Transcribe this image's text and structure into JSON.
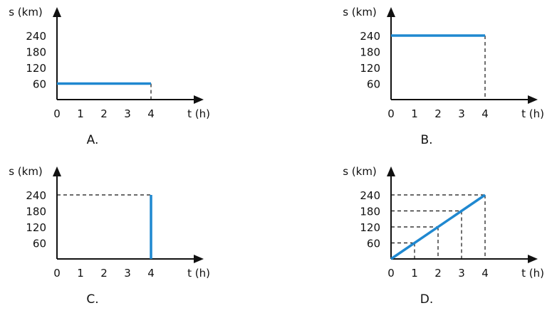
{
  "chart_data": [
    {
      "type": "line",
      "label": "A.",
      "ylabel": "s (km)",
      "xlabel": "t (h)",
      "x_ticks": [
        "0",
        "1",
        "2",
        "3",
        "4"
      ],
      "y_ticks": [
        "60",
        "120",
        "180",
        "240"
      ],
      "xlim": [
        0,
        4
      ],
      "ylim": [
        0,
        240
      ],
      "series": [
        {
          "points": [
            [
              0,
              60
            ],
            [
              4,
              60
            ]
          ]
        }
      ],
      "guides": [
        {
          "from": [
            4,
            60
          ],
          "to": [
            4,
            0
          ]
        }
      ]
    },
    {
      "type": "line",
      "label": "B.",
      "ylabel": "s (km)",
      "xlabel": "t (h)",
      "x_ticks": [
        "0",
        "1",
        "2",
        "3",
        "4"
      ],
      "y_ticks": [
        "60",
        "120",
        "180",
        "240"
      ],
      "xlim": [
        0,
        4
      ],
      "ylim": [
        0,
        240
      ],
      "series": [
        {
          "points": [
            [
              0,
              240
            ],
            [
              4,
              240
            ]
          ]
        }
      ],
      "guides": [
        {
          "from": [
            4,
            240
          ],
          "to": [
            4,
            0
          ]
        }
      ]
    },
    {
      "type": "line",
      "label": "C.",
      "ylabel": "s (km)",
      "xlabel": "t (h)",
      "x_ticks": [
        "0",
        "1",
        "2",
        "3",
        "4"
      ],
      "y_ticks": [
        "60",
        "120",
        "180",
        "240"
      ],
      "xlim": [
        0,
        4
      ],
      "ylim": [
        0,
        240
      ],
      "series": [
        {
          "points": [
            [
              4,
              0
            ],
            [
              4,
              240
            ]
          ]
        }
      ],
      "guides": [
        {
          "from": [
            0,
            240
          ],
          "to": [
            4,
            240
          ]
        }
      ]
    },
    {
      "type": "line",
      "label": "D.",
      "ylabel": "s (km)",
      "xlabel": "t (h)",
      "x_ticks": [
        "0",
        "1",
        "2",
        "3",
        "4"
      ],
      "y_ticks": [
        "60",
        "120",
        "180",
        "240"
      ],
      "xlim": [
        0,
        4
      ],
      "ylim": [
        0,
        240
      ],
      "series": [
        {
          "points": [
            [
              0,
              0
            ],
            [
              4,
              240
            ]
          ]
        }
      ],
      "guides": [
        {
          "from": [
            0,
            60
          ],
          "to": [
            1,
            60
          ]
        },
        {
          "from": [
            1,
            60
          ],
          "to": [
            1,
            0
          ]
        },
        {
          "from": [
            0,
            120
          ],
          "to": [
            2,
            120
          ]
        },
        {
          "from": [
            2,
            120
          ],
          "to": [
            2,
            0
          ]
        },
        {
          "from": [
            0,
            180
          ],
          "to": [
            3,
            180
          ]
        },
        {
          "from": [
            3,
            180
          ],
          "to": [
            3,
            0
          ]
        },
        {
          "from": [
            0,
            240
          ],
          "to": [
            4,
            240
          ]
        },
        {
          "from": [
            4,
            240
          ],
          "to": [
            4,
            0
          ]
        }
      ]
    }
  ],
  "colors": {
    "line": "#1f88d0",
    "axis": "#111111",
    "guide": "#111111"
  }
}
